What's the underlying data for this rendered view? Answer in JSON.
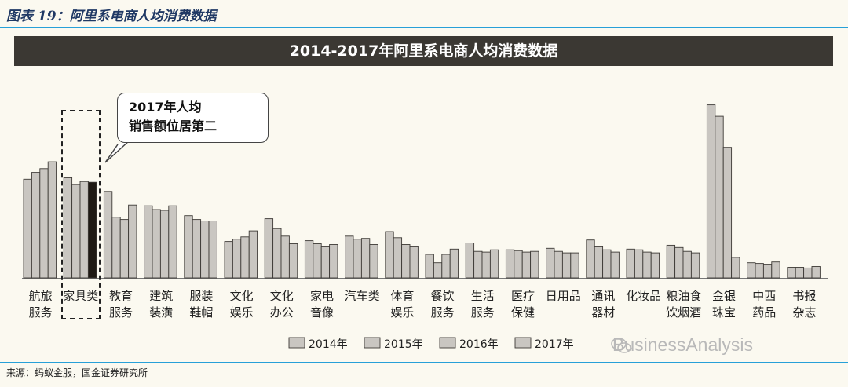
{
  "figure_label": "图表 19：阿里系电商人均消费数据",
  "source": "来源：蚂蚁金服，国金证券研究所",
  "watermark": "BusinessAnalysis",
  "colors": {
    "bar": "#c9c6c1",
    "highlight": "#1f1a14",
    "banner": "#3b3833",
    "accent_line": "#27a0d8"
  },
  "chart_data": {
    "type": "bar",
    "title": "2014-2017年阿里系电商人均消费数据",
    "categories": [
      [
        "航旅",
        "服务"
      ],
      [
        "家具类"
      ],
      [
        "教育",
        "服务"
      ],
      [
        "建筑",
        "装潢"
      ],
      [
        "服装",
        "鞋帽"
      ],
      [
        "文化",
        "娱乐"
      ],
      [
        "文化",
        "办公"
      ],
      [
        "家电",
        "音像"
      ],
      [
        "汽车类"
      ],
      [
        "体育",
        "娱乐"
      ],
      [
        "餐饮",
        "服务"
      ],
      [
        "生活",
        "服务"
      ],
      [
        "医疗",
        "保健"
      ],
      [
        "日用品"
      ],
      [
        "通讯",
        "器材"
      ],
      [
        "化妆品"
      ],
      [
        "粮油食",
        "饮烟酒"
      ],
      [
        "金银",
        "珠宝"
      ],
      [
        "中西",
        "药品"
      ],
      [
        "书报",
        "杂志"
      ]
    ],
    "series": [
      {
        "name": "2014年",
        "values": [
          130,
          132,
          114,
          95,
          82,
          48,
          78,
          49,
          55,
          61,
          31,
          46,
          37,
          39,
          50,
          38,
          43,
          228,
          20,
          14
        ]
      },
      {
        "name": "2015年",
        "values": [
          139,
          123,
          80,
          90,
          77,
          51,
          65,
          45,
          51,
          53,
          20,
          35,
          36,
          35,
          41,
          37,
          40,
          213,
          19,
          14
        ]
      },
      {
        "name": "2016年",
        "values": [
          144,
          127,
          77,
          89,
          75,
          54,
          55,
          41,
          52,
          44,
          31,
          34,
          34,
          33,
          37,
          34,
          35,
          172,
          18,
          13
        ]
      },
      {
        "name": "2017年",
        "values": [
          153,
          126,
          96,
          95,
          75,
          62,
          45,
          44,
          44,
          41,
          38,
          37,
          35,
          33,
          34,
          33,
          33,
          27,
          21,
          15
        ]
      }
    ],
    "highlight": {
      "category_index": 1,
      "series_index": 3
    },
    "annotation": "2017年人均销售额位居第二",
    "ylim": [
      0,
      240
    ],
    "legend_position": "bottom-center"
  }
}
